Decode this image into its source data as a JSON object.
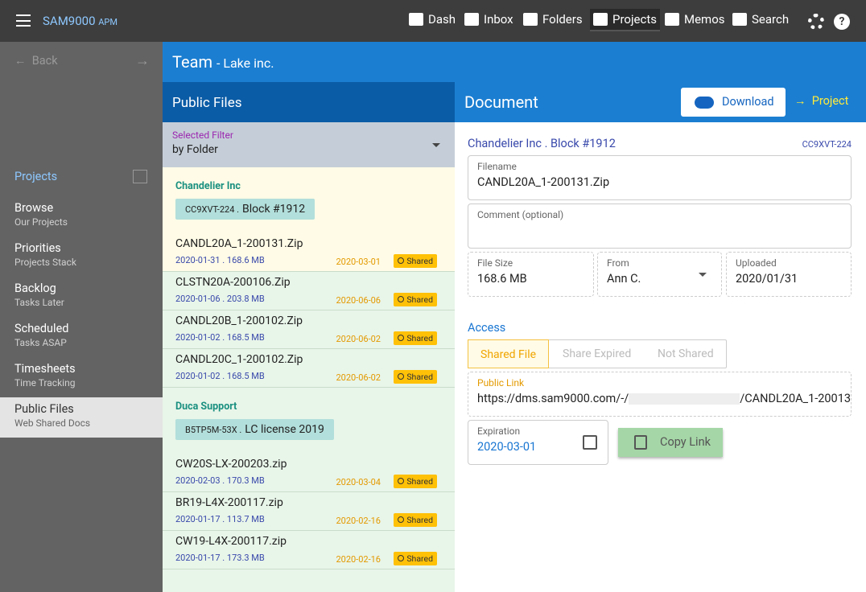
{
  "topbar": {
    "brand": "SAM9000",
    "brand_sub": "APM",
    "nav": [
      "Dash",
      "Inbox",
      "Folders",
      "Projects",
      "Memos",
      "Search"
    ]
  },
  "sidebar": {
    "back": "Back",
    "section": "Projects",
    "items": [
      {
        "title": "Browse",
        "subtitle": "Our Projects"
      },
      {
        "title": "Priorities",
        "subtitle": "Projects Stack"
      },
      {
        "title": "Backlog",
        "subtitle": "Tasks Later"
      },
      {
        "title": "Scheduled",
        "subtitle": "Tasks ASAP"
      },
      {
        "title": "Timesheets",
        "subtitle": "Time Tracking"
      },
      {
        "title": "Public Files",
        "subtitle": "Web Shared Docs"
      }
    ]
  },
  "header": {
    "team": "Team",
    "org": "- Lake inc."
  },
  "files": {
    "title": "Public Files",
    "filter_label": "Selected Filter",
    "filter_value": "by Folder",
    "groups": [
      {
        "name": "Chandelier Inc",
        "code": "CC9XVT-224 .",
        "block": "Block #1912",
        "files": [
          {
            "name": "CANDL20A_1-200131.Zip",
            "meta": "2020-01-31 . 168.6 MB",
            "shared_date": "2020-03-01",
            "status": "Shared"
          },
          {
            "name": "CLSTN20A-200106.Zip",
            "meta": "2020-01-06 . 203.8 MB",
            "shared_date": "2020-06-06",
            "status": "Shared"
          },
          {
            "name": "CANDL20B_1-200102.Zip",
            "meta": "2020-01-02 . 168.5 MB",
            "shared_date": "2020-06-02",
            "status": "Shared"
          },
          {
            "name": "CANDL20C_1-200102.Zip",
            "meta": "2020-01-02 . 168.5 MB",
            "shared_date": "2020-06-02",
            "status": "Shared"
          }
        ]
      },
      {
        "name": "Duca Support",
        "code": "B5TP5M-53X .",
        "block": "LC license 2019",
        "files": [
          {
            "name": "CW20S-LX-200203.zip",
            "meta": "2020-02-03 . 170.3 MB",
            "shared_date": "2020-03-04",
            "status": "Shared"
          },
          {
            "name": "BR19-L4X-200117.zip",
            "meta": "2020-01-17 . 113.7 MB",
            "shared_date": "2020-02-16",
            "status": "Shared"
          },
          {
            "name": "CW19-L4X-200117.zip",
            "meta": "2020-01-17 . 173.3 MB",
            "shared_date": "2020-02-16",
            "status": "Shared"
          }
        ]
      }
    ]
  },
  "document": {
    "title": "Document",
    "download": "Download",
    "project": "Project",
    "heading": "Chandelier Inc . Block #1912",
    "code": "CC9XVT-224",
    "filename_label": "Filename",
    "filename": "CANDL20A_1-200131.Zip",
    "comment_label": "Comment (optional)",
    "size_label": "File Size",
    "size": "168.6 MB",
    "from_label": "From",
    "from": "Ann C.",
    "uploaded_label": "Uploaded",
    "uploaded": "2020/01/31",
    "access_label": "Access",
    "tabs": [
      "Shared File",
      "Share Expired",
      "Not Shared"
    ],
    "link_label": "Public Link",
    "link_start": "https://dms.sam9000.com/-/",
    "link_end": "/CANDL20A_1-20013",
    "expiration_label": "Expiration",
    "expiration": "2020-03-01",
    "copy": "Copy Link"
  }
}
